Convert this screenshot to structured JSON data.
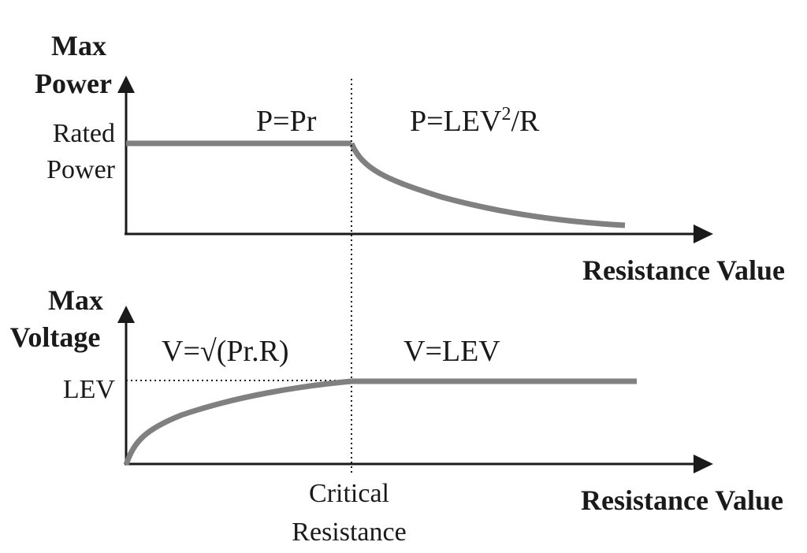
{
  "top_panel": {
    "y_axis_label_line1": "Max",
    "y_axis_label_line2": "Power",
    "y_tick_line1": "Rated",
    "y_tick_line2": "Power",
    "x_axis_label": "Resistance Value",
    "formula_left": "P=Pr",
    "formula_right_base": "P=LEV",
    "formula_right_sup": "2",
    "formula_right_tail": "/R"
  },
  "bottom_panel": {
    "y_axis_label_line1": "Max",
    "y_axis_label_line2": "Voltage",
    "y_tick": "LEV",
    "x_axis_label": "Resistance Value",
    "formula_left": "V=√(Pr.R)",
    "formula_right": "V=LEV",
    "x_tick_line1": "Critical",
    "x_tick_line2": "Resistance"
  },
  "colors": {
    "curve": "#808080",
    "axis": "#1a1a1a"
  }
}
